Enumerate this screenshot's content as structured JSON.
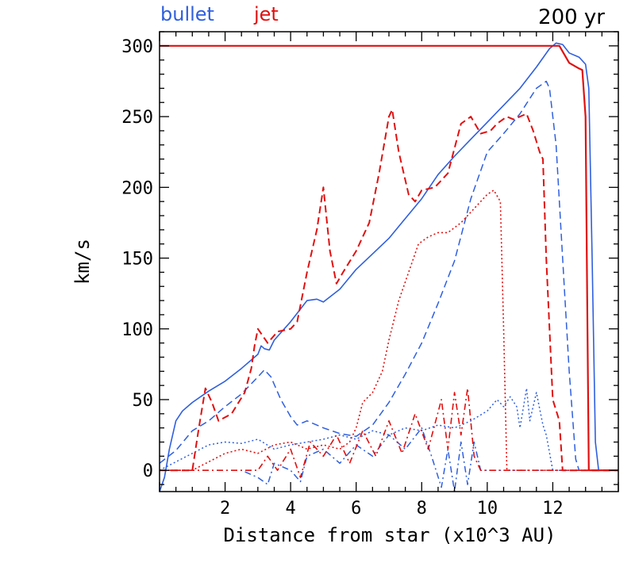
{
  "chart_data": {
    "type": "line",
    "title": "",
    "annotation": "200 yr",
    "xlabel": "Distance from star (x10^3 AU)",
    "ylabel": "km/s",
    "xlim": [
      0,
      14
    ],
    "ylim": [
      -15,
      310
    ],
    "xticks": [
      2,
      4,
      6,
      8,
      10,
      12
    ],
    "yticks": [
      0,
      50,
      100,
      150,
      200,
      250,
      300
    ],
    "grid": false,
    "legend": {
      "placement": "top-left",
      "entries": [
        "bullet",
        "jet"
      ]
    },
    "colors": {
      "bullet": "#2f5fdf",
      "jet": "#e01010"
    },
    "series": [
      {
        "group": "bullet",
        "dash": "solid",
        "width": 1.6,
        "points": [
          [
            0,
            -15
          ],
          [
            0.15,
            -5
          ],
          [
            0.3,
            15
          ],
          [
            0.5,
            35
          ],
          [
            0.7,
            42
          ],
          [
            1,
            48
          ],
          [
            1.5,
            56
          ],
          [
            2,
            63
          ],
          [
            2.5,
            72
          ],
          [
            3,
            82
          ],
          [
            3.1,
            88
          ],
          [
            3.2,
            86
          ],
          [
            3.35,
            85
          ],
          [
            3.5,
            92
          ],
          [
            4,
            105
          ],
          [
            4.5,
            120
          ],
          [
            4.8,
            121
          ],
          [
            5,
            119
          ],
          [
            5.5,
            128
          ],
          [
            6,
            142
          ],
          [
            6.5,
            153
          ],
          [
            7,
            164
          ],
          [
            7.5,
            178
          ],
          [
            8,
            192
          ],
          [
            8.5,
            209
          ],
          [
            9,
            222
          ],
          [
            9.5,
            234
          ],
          [
            10,
            246
          ],
          [
            10.5,
            258
          ],
          [
            11,
            270
          ],
          [
            11.5,
            285
          ],
          [
            11.9,
            298
          ],
          [
            12.1,
            302
          ],
          [
            12.3,
            301
          ],
          [
            12.5,
            295
          ],
          [
            12.8,
            292
          ],
          [
            13.0,
            287
          ],
          [
            13.1,
            270
          ],
          [
            13.2,
            150
          ],
          [
            13.3,
            20
          ],
          [
            13.4,
            0
          ],
          [
            14,
            0
          ]
        ]
      },
      {
        "group": "bullet",
        "dash": "dashed",
        "width": 1.5,
        "points": [
          [
            0,
            5
          ],
          [
            0.5,
            14
          ],
          [
            1,
            28
          ],
          [
            1.5,
            35
          ],
          [
            2,
            45
          ],
          [
            2.5,
            54
          ],
          [
            3,
            66
          ],
          [
            3.2,
            71
          ],
          [
            3.4,
            66
          ],
          [
            3.7,
            50
          ],
          [
            4,
            38
          ],
          [
            4.2,
            32
          ],
          [
            4.5,
            35
          ],
          [
            5,
            30
          ],
          [
            5.5,
            26
          ],
          [
            6,
            24
          ],
          [
            6.5,
            32
          ],
          [
            7,
            48
          ],
          [
            7.5,
            68
          ],
          [
            8,
            90
          ],
          [
            8.5,
            118
          ],
          [
            9,
            148
          ],
          [
            9.5,
            192
          ],
          [
            10,
            225
          ],
          [
            10.5,
            238
          ],
          [
            11,
            252
          ],
          [
            11.5,
            270
          ],
          [
            11.8,
            275
          ],
          [
            11.9,
            270
          ],
          [
            12.1,
            230
          ],
          [
            12.3,
            150
          ],
          [
            12.5,
            70
          ],
          [
            12.7,
            8
          ],
          [
            12.8,
            0
          ],
          [
            14,
            0
          ]
        ]
      },
      {
        "group": "bullet",
        "dash": "dotted",
        "width": 1.5,
        "points": [
          [
            0,
            0
          ],
          [
            0.5,
            6
          ],
          [
            1,
            12
          ],
          [
            1.5,
            18
          ],
          [
            2,
            20
          ],
          [
            2.5,
            19
          ],
          [
            3,
            22
          ],
          [
            3.5,
            15
          ],
          [
            4,
            18
          ],
          [
            4.5,
            20
          ],
          [
            5,
            22
          ],
          [
            5.5,
            25
          ],
          [
            6,
            22
          ],
          [
            6.5,
            28
          ],
          [
            7,
            25
          ],
          [
            7.5,
            30
          ],
          [
            8,
            28
          ],
          [
            8.5,
            32
          ],
          [
            9,
            30
          ],
          [
            9.5,
            35
          ],
          [
            10,
            42
          ],
          [
            10.3,
            50
          ],
          [
            10.5,
            45
          ],
          [
            10.7,
            52
          ],
          [
            10.9,
            45
          ],
          [
            11,
            30
          ],
          [
            11.2,
            58
          ],
          [
            11.3,
            35
          ],
          [
            11.5,
            55
          ],
          [
            11.7,
            32
          ],
          [
            11.8,
            25
          ],
          [
            12,
            0
          ],
          [
            14,
            0
          ]
        ]
      },
      {
        "group": "bullet",
        "dash": "dashdot",
        "width": 1.5,
        "points": [
          [
            0,
            0
          ],
          [
            2,
            0
          ],
          [
            2.5,
            0
          ],
          [
            3,
            -5
          ],
          [
            3.3,
            -10
          ],
          [
            3.5,
            5
          ],
          [
            4,
            0
          ],
          [
            4.3,
            -8
          ],
          [
            4.5,
            10
          ],
          [
            5,
            15
          ],
          [
            5.5,
            5
          ],
          [
            6,
            18
          ],
          [
            6.5,
            10
          ],
          [
            7,
            25
          ],
          [
            7.5,
            15
          ],
          [
            8,
            30
          ],
          [
            8.3,
            10
          ],
          [
            8.6,
            -12
          ],
          [
            8.8,
            15
          ],
          [
            9,
            -15
          ],
          [
            9.2,
            20
          ],
          [
            9.4,
            -10
          ],
          [
            9.6,
            20
          ],
          [
            9.8,
            0
          ],
          [
            10,
            0
          ],
          [
            14,
            0
          ]
        ]
      },
      {
        "group": "jet",
        "dash": "solid",
        "width": 2.2,
        "points": [
          [
            0,
            300
          ],
          [
            11.9,
            300
          ],
          [
            12.2,
            300
          ],
          [
            12.5,
            288
          ],
          [
            12.8,
            284
          ],
          [
            12.9,
            283
          ],
          [
            13.0,
            250
          ],
          [
            13.05,
            120
          ],
          [
            13.1,
            0
          ],
          [
            14,
            0
          ]
        ]
      },
      {
        "group": "jet",
        "dash": "dashed",
        "width": 2.0,
        "points": [
          [
            0,
            0
          ],
          [
            1,
            0
          ],
          [
            1.2,
            30
          ],
          [
            1.4,
            58
          ],
          [
            1.6,
            48
          ],
          [
            1.8,
            35
          ],
          [
            2.2,
            40
          ],
          [
            2.6,
            55
          ],
          [
            2.8,
            72
          ],
          [
            2.9,
            88
          ],
          [
            3.0,
            100
          ],
          [
            3.3,
            90
          ],
          [
            3.6,
            98
          ],
          [
            4,
            100
          ],
          [
            4.2,
            105
          ],
          [
            4.5,
            140
          ],
          [
            4.8,
            170
          ],
          [
            5.0,
            200
          ],
          [
            5.2,
            155
          ],
          [
            5.4,
            132
          ],
          [
            5.6,
            140
          ],
          [
            6,
            155
          ],
          [
            6.4,
            175
          ],
          [
            6.7,
            210
          ],
          [
            7.0,
            250
          ],
          [
            7.1,
            255
          ],
          [
            7.3,
            225
          ],
          [
            7.6,
            195
          ],
          [
            7.8,
            190
          ],
          [
            8.0,
            198
          ],
          [
            8.4,
            200
          ],
          [
            8.8,
            210
          ],
          [
            9.2,
            245
          ],
          [
            9.5,
            250
          ],
          [
            9.8,
            238
          ],
          [
            10.1,
            240
          ],
          [
            10.3,
            245
          ],
          [
            10.6,
            250
          ],
          [
            10.8,
            248
          ],
          [
            11,
            250
          ],
          [
            11.2,
            252
          ],
          [
            11.4,
            240
          ],
          [
            11.6,
            225
          ],
          [
            11.7,
            220
          ],
          [
            11.8,
            150
          ],
          [
            12.0,
            50
          ],
          [
            12.2,
            35
          ],
          [
            12.3,
            0
          ],
          [
            14,
            0
          ]
        ]
      },
      {
        "group": "jet",
        "dash": "dotted",
        "width": 1.6,
        "points": [
          [
            0,
            0
          ],
          [
            1,
            0
          ],
          [
            1.5,
            6
          ],
          [
            2,
            12
          ],
          [
            2.5,
            15
          ],
          [
            3,
            12
          ],
          [
            3.5,
            18
          ],
          [
            4,
            20
          ],
          [
            4.5,
            15
          ],
          [
            5,
            18
          ],
          [
            5.5,
            15
          ],
          [
            5.8,
            20
          ],
          [
            6,
            30
          ],
          [
            6.2,
            48
          ],
          [
            6.5,
            55
          ],
          [
            6.8,
            70
          ],
          [
            7,
            92
          ],
          [
            7.3,
            120
          ],
          [
            7.6,
            140
          ],
          [
            7.9,
            160
          ],
          [
            8.2,
            165
          ],
          [
            8.5,
            168
          ],
          [
            8.8,
            168
          ],
          [
            9.2,
            175
          ],
          [
            9.6,
            185
          ],
          [
            10,
            195
          ],
          [
            10.2,
            198
          ],
          [
            10.4,
            190
          ],
          [
            10.5,
            100
          ],
          [
            10.6,
            0
          ],
          [
            14,
            0
          ]
        ]
      },
      {
        "group": "jet",
        "dash": "dashdot",
        "width": 1.6,
        "points": [
          [
            0,
            0
          ],
          [
            2.5,
            0
          ],
          [
            3,
            0
          ],
          [
            3.3,
            10
          ],
          [
            3.6,
            0
          ],
          [
            4,
            15
          ],
          [
            4.3,
            -5
          ],
          [
            4.6,
            20
          ],
          [
            5,
            10
          ],
          [
            5.4,
            25
          ],
          [
            5.8,
            5
          ],
          [
            6.2,
            28
          ],
          [
            6.6,
            10
          ],
          [
            7,
            35
          ],
          [
            7.4,
            12
          ],
          [
            7.8,
            40
          ],
          [
            8.2,
            15
          ],
          [
            8.6,
            50
          ],
          [
            8.8,
            15
          ],
          [
            9.0,
            55
          ],
          [
            9.2,
            25
          ],
          [
            9.4,
            58
          ],
          [
            9.6,
            10
          ],
          [
            9.8,
            0
          ],
          [
            14,
            0
          ]
        ]
      }
    ]
  }
}
